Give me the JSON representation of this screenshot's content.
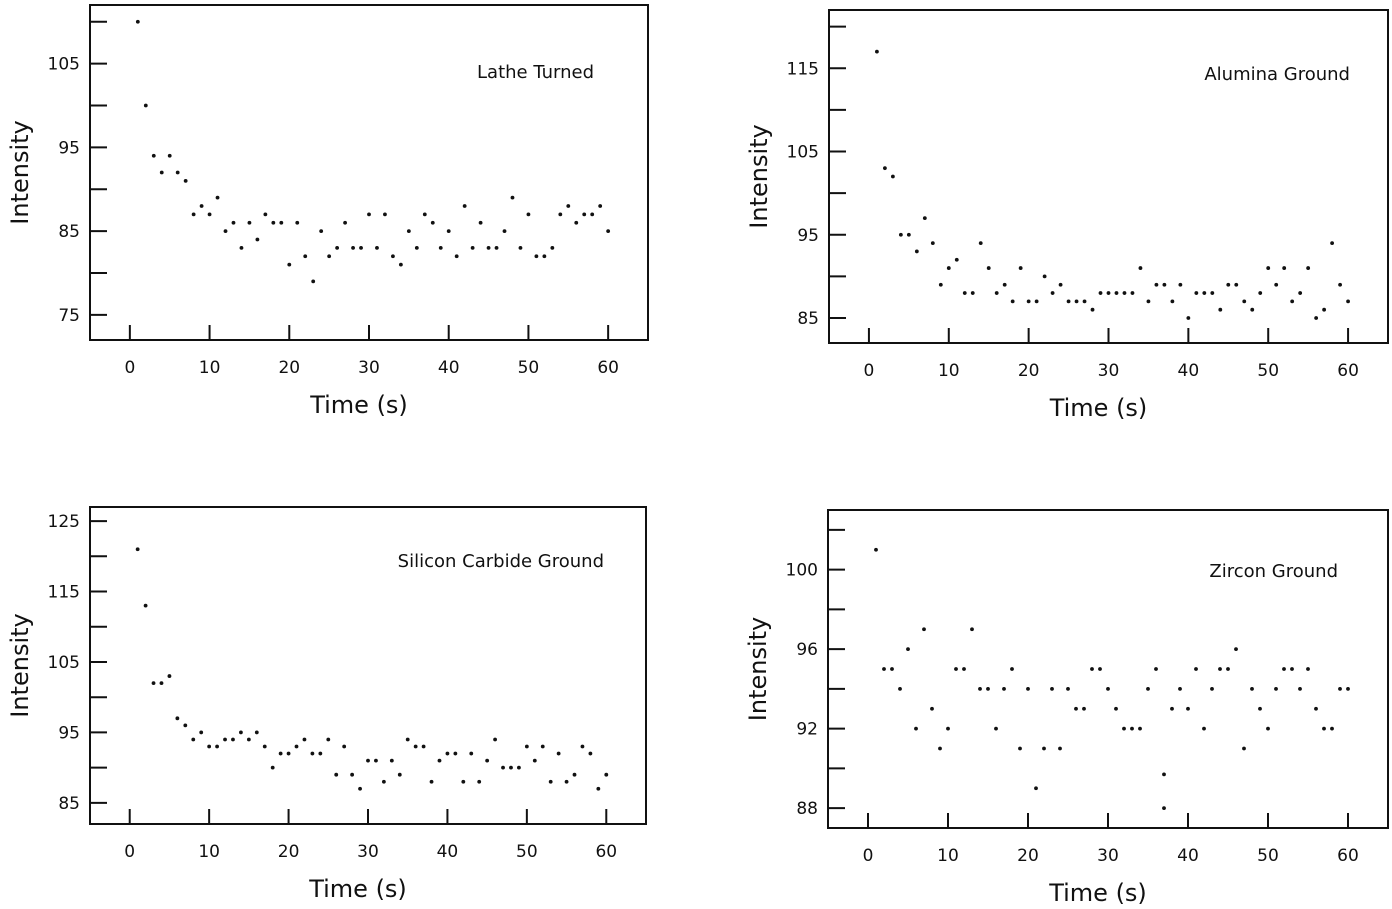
{
  "chart_data": [
    {
      "type": "scatter",
      "panel_label": "Lathe Turned",
      "xlabel": "Time (s)",
      "ylabel": "Intensity",
      "xlim": [
        -5,
        65
      ],
      "ylim": [
        72,
        112
      ],
      "xticks": [
        0,
        10,
        20,
        30,
        40,
        50,
        60
      ],
      "yticks": [
        75,
        85,
        95,
        105
      ],
      "y_minor_ticks": [
        80,
        90,
        100,
        110
      ],
      "grid": false,
      "legend": "none",
      "x": [
        1,
        2,
        3,
        4,
        5,
        6,
        7,
        8,
        9,
        10,
        11,
        12,
        13,
        14,
        15,
        16,
        17,
        18,
        19,
        20,
        21,
        22,
        23,
        24,
        25,
        26,
        27,
        28,
        29,
        30,
        31,
        32,
        33,
        34,
        35,
        36,
        37,
        38,
        39,
        40,
        41,
        42,
        43,
        44,
        45,
        46,
        47,
        48,
        49,
        50,
        51,
        52,
        53,
        54,
        55,
        56,
        57,
        58,
        59,
        60
      ],
      "y": [
        110,
        100,
        94,
        92,
        94,
        92,
        91,
        87,
        88,
        87,
        89,
        85,
        86,
        83,
        86,
        84,
        87,
        86,
        86,
        81,
        86,
        82,
        79,
        85,
        82,
        83,
        86,
        83,
        83,
        87,
        83,
        87,
        82,
        81,
        85,
        83,
        87,
        86,
        83,
        85,
        82,
        88,
        83,
        86,
        83,
        83,
        85,
        89,
        83,
        87,
        82,
        82,
        83,
        87,
        88,
        86,
        87,
        87,
        88,
        85
      ]
    },
    {
      "type": "scatter",
      "panel_label": "Alumina Ground",
      "xlabel": "Time (s)",
      "ylabel": "Intensity",
      "xlim": [
        -5,
        65
      ],
      "ylim": [
        82,
        122
      ],
      "xticks": [
        0,
        10,
        20,
        30,
        40,
        50,
        60
      ],
      "yticks": [
        85,
        95,
        105,
        115
      ],
      "y_minor_ticks": [
        90,
        100,
        110,
        120
      ],
      "grid": false,
      "legend": "none",
      "x": [
        1,
        2,
        3,
        4,
        5,
        6,
        7,
        8,
        9,
        10,
        11,
        12,
        13,
        14,
        15,
        16,
        17,
        18,
        19,
        20,
        21,
        22,
        23,
        24,
        25,
        26,
        27,
        28,
        29,
        30,
        31,
        32,
        33,
        34,
        35,
        36,
        37,
        38,
        39,
        40,
        41,
        42,
        43,
        44,
        45,
        46,
        47,
        48,
        49,
        50,
        51,
        52,
        53,
        54,
        55,
        56,
        57,
        58,
        59,
        60
      ],
      "y": [
        117,
        103,
        102,
        95,
        95,
        93,
        97,
        94,
        89,
        91,
        92,
        88,
        88,
        94,
        91,
        88,
        89,
        87,
        91,
        87,
        87,
        90,
        88,
        89,
        87,
        87,
        87,
        86,
        88,
        88,
        88,
        88,
        88,
        91,
        87,
        89,
        89,
        87,
        89,
        85,
        88,
        88,
        88,
        86,
        89,
        89,
        87,
        86,
        88,
        91,
        89,
        91,
        87,
        88,
        91,
        85,
        86,
        94,
        89,
        87
      ]
    },
    {
      "type": "scatter",
      "panel_label": "Silicon Carbide Ground",
      "xlabel": "Time (s)",
      "ylabel": "Intensity",
      "xlim": [
        -5,
        65
      ],
      "ylim": [
        82,
        127
      ],
      "xticks": [
        0,
        10,
        20,
        30,
        40,
        50,
        60
      ],
      "yticks": [
        85,
        95,
        105,
        115,
        125
      ],
      "y_minor_ticks": [
        90,
        100,
        110,
        120
      ],
      "grid": false,
      "legend": "none",
      "x": [
        1,
        2,
        3,
        4,
        5,
        6,
        7,
        8,
        9,
        10,
        11,
        12,
        13,
        14,
        15,
        16,
        17,
        18,
        19,
        20,
        21,
        22,
        23,
        24,
        25,
        26,
        27,
        28,
        29,
        30,
        31,
        32,
        33,
        34,
        35,
        36,
        37,
        38,
        39,
        40,
        41,
        42,
        43,
        44,
        45,
        46,
        47,
        48,
        49,
        50,
        51,
        52,
        53,
        54,
        55,
        56,
        57,
        58,
        59,
        60
      ],
      "y": [
        121,
        113,
        102,
        102,
        103,
        97,
        96,
        94,
        95,
        93,
        93,
        94,
        94,
        95,
        94,
        95,
        93,
        90,
        92,
        92,
        93,
        94,
        92,
        92,
        94,
        89,
        93,
        89,
        87,
        91,
        91,
        88,
        91,
        89,
        94,
        93,
        93,
        88,
        91,
        92,
        92,
        88,
        92,
        88,
        91,
        94,
        90,
        90,
        90,
        93,
        91,
        93,
        88,
        92,
        88,
        89,
        93,
        92,
        87,
        89
      ]
    },
    {
      "type": "scatter",
      "panel_label": "Zircon Ground",
      "xlabel": "Time (s)",
      "ylabel": "Intensity",
      "xlim": [
        -5,
        65
      ],
      "ylim": [
        87,
        103
      ],
      "xticks": [
        0,
        10,
        20,
        30,
        40,
        50,
        60
      ],
      "yticks": [
        88,
        92,
        96,
        100
      ],
      "y_minor_ticks": [
        90,
        94,
        98,
        102
      ],
      "grid": false,
      "legend": "none",
      "x": [
        1,
        2,
        3,
        4,
        5,
        6,
        7,
        8,
        9,
        10,
        11,
        12,
        13,
        14,
        15,
        16,
        17,
        18,
        19,
        20,
        21,
        22,
        23,
        24,
        25,
        26,
        27,
        28,
        29,
        30,
        31,
        32,
        33,
        34,
        35,
        36,
        37,
        37,
        38,
        39,
        40,
        41,
        42,
        43,
        44,
        45,
        46,
        47,
        48,
        49,
        50,
        51,
        52,
        53,
        54,
        55,
        56,
        57,
        58,
        59,
        60
      ],
      "y": [
        101,
        95,
        95,
        94,
        96,
        92,
        97,
        93,
        91,
        92,
        95,
        95,
        97,
        94,
        94,
        92,
        94,
        95,
        91,
        94,
        89,
        91,
        94,
        91,
        94,
        93,
        93,
        95,
        95,
        94,
        93,
        92,
        92,
        92,
        94,
        95,
        88,
        89.7,
        93,
        94,
        93,
        95,
        92,
        94,
        95,
        95,
        96,
        91,
        94,
        93,
        92,
        94,
        95,
        95,
        94,
        95,
        93,
        92,
        92,
        94,
        94
      ]
    }
  ]
}
